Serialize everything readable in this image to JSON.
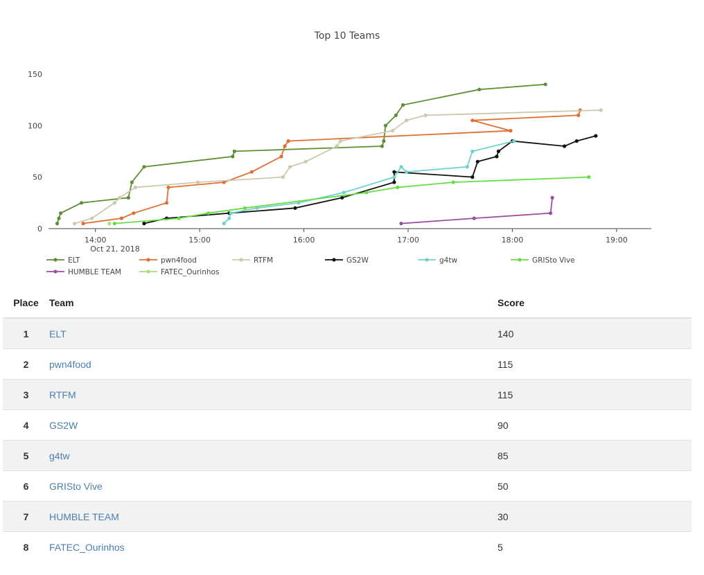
{
  "chart_data": {
    "type": "line",
    "title": "Top 10 Teams",
    "x_axis": {
      "ticks": [
        "14:00",
        "15:00",
        "16:00",
        "17:00",
        "18:00",
        "19:00"
      ],
      "date_label": "Oct 21, 2018",
      "range": [
        "13:33",
        "19:20"
      ]
    },
    "y_axis": {
      "ticks": [
        0,
        50,
        100,
        150
      ],
      "range": [
        0,
        158
      ]
    },
    "grid": false,
    "legend_position": "bottom",
    "series": [
      {
        "name": "ELT",
        "color": "#5e8f33",
        "points": [
          [
            "13:38",
            5
          ],
          [
            "13:39",
            10
          ],
          [
            "13:40",
            15
          ],
          [
            "13:52",
            25
          ],
          [
            "14:19",
            30
          ],
          [
            "14:21",
            45
          ],
          [
            "14:28",
            60
          ],
          [
            "15:19",
            70
          ],
          [
            "15:20",
            75
          ],
          [
            "16:45",
            80
          ],
          [
            "16:46",
            85
          ],
          [
            "16:47",
            100
          ],
          [
            "16:53",
            110
          ],
          [
            "16:57",
            120
          ],
          [
            "17:41",
            135
          ],
          [
            "18:19",
            140
          ]
        ]
      },
      {
        "name": "pwn4food",
        "color": "#df6f30",
        "points": [
          [
            "13:53",
            5
          ],
          [
            "14:15",
            10
          ],
          [
            "14:22",
            15
          ],
          [
            "14:41",
            25
          ],
          [
            "14:42",
            40
          ],
          [
            "15:14",
            45
          ],
          [
            "15:30",
            55
          ],
          [
            "15:47",
            70
          ],
          [
            "15:49",
            80
          ],
          [
            "15:51",
            85
          ],
          [
            "17:59",
            95
          ],
          [
            "17:37",
            105
          ],
          [
            "18:38",
            110
          ],
          [
            "18:39",
            115
          ]
        ]
      },
      {
        "name": "RTFM",
        "color": "#cdc8ad",
        "points": [
          [
            "13:48",
            5
          ],
          [
            "13:58",
            10
          ],
          [
            "14:11",
            25
          ],
          [
            "14:14",
            30
          ],
          [
            "14:23",
            40
          ],
          [
            "14:59",
            45
          ],
          [
            "15:48",
            50
          ],
          [
            "15:52",
            60
          ],
          [
            "16:01",
            65
          ],
          [
            "16:19",
            80
          ],
          [
            "16:21",
            85
          ],
          [
            "16:51",
            95
          ],
          [
            "16:59",
            105
          ],
          [
            "17:10",
            110
          ],
          [
            "18:51",
            115
          ]
        ]
      },
      {
        "name": "GS2W",
        "color": "#111111",
        "points": [
          [
            "14:28",
            5
          ],
          [
            "14:41",
            10
          ],
          [
            "15:17",
            15
          ],
          [
            "15:55",
            20
          ],
          [
            "16:22",
            30
          ],
          [
            "16:52",
            45
          ],
          [
            "16:52",
            55
          ],
          [
            "17:37",
            50
          ],
          [
            "17:40",
            65
          ],
          [
            "17:51",
            70
          ],
          [
            "17:52",
            75
          ],
          [
            "18:00",
            85
          ],
          [
            "18:30",
            80
          ],
          [
            "18:37",
            85
          ],
          [
            "18:48",
            90
          ]
        ]
      },
      {
        "name": "g4tw",
        "color": "#6fd2cc",
        "points": [
          [
            "15:14",
            5
          ],
          [
            "15:17",
            10
          ],
          [
            "15:18",
            15
          ],
          [
            "15:33",
            20
          ],
          [
            "15:57",
            25
          ],
          [
            "16:23",
            35
          ],
          [
            "16:52",
            50
          ],
          [
            "16:56",
            60
          ],
          [
            "16:59",
            55
          ],
          [
            "17:34",
            60
          ],
          [
            "17:37",
            75
          ],
          [
            "18:01",
            85
          ]
        ]
      },
      {
        "name": "GRISto Vive",
        "color": "#66dd44",
        "points": [
          [
            "14:11",
            5
          ],
          [
            "14:48",
            10
          ],
          [
            "15:05",
            15
          ],
          [
            "15:26",
            20
          ],
          [
            "16:36",
            35
          ],
          [
            "16:54",
            40
          ],
          [
            "17:26",
            45
          ],
          [
            "18:44",
            50
          ]
        ]
      },
      {
        "name": "HUMBLE TEAM",
        "color": "#9b4ea0",
        "points": [
          [
            "16:56",
            5
          ],
          [
            "17:38",
            10
          ],
          [
            "18:22",
            15
          ],
          [
            "18:23",
            30
          ]
        ]
      },
      {
        "name": "FATEC_Ourinhos",
        "color": "#a7de7a",
        "points": [
          [
            "14:08",
            5
          ]
        ]
      }
    ]
  },
  "table": {
    "headers": {
      "place": "Place",
      "team": "Team",
      "score": "Score"
    },
    "rows": [
      {
        "place": "1",
        "team": "ELT",
        "score": "140"
      },
      {
        "place": "2",
        "team": "pwn4food",
        "score": "115"
      },
      {
        "place": "3",
        "team": "RTFM",
        "score": "115"
      },
      {
        "place": "4",
        "team": "GS2W",
        "score": "90"
      },
      {
        "place": "5",
        "team": "g4tw",
        "score": "85"
      },
      {
        "place": "6",
        "team": "GRISto Vive",
        "score": "50"
      },
      {
        "place": "7",
        "team": "HUMBLE TEAM",
        "score": "30"
      },
      {
        "place": "8",
        "team": "FATEC_Ourinhos",
        "score": "5"
      }
    ]
  }
}
